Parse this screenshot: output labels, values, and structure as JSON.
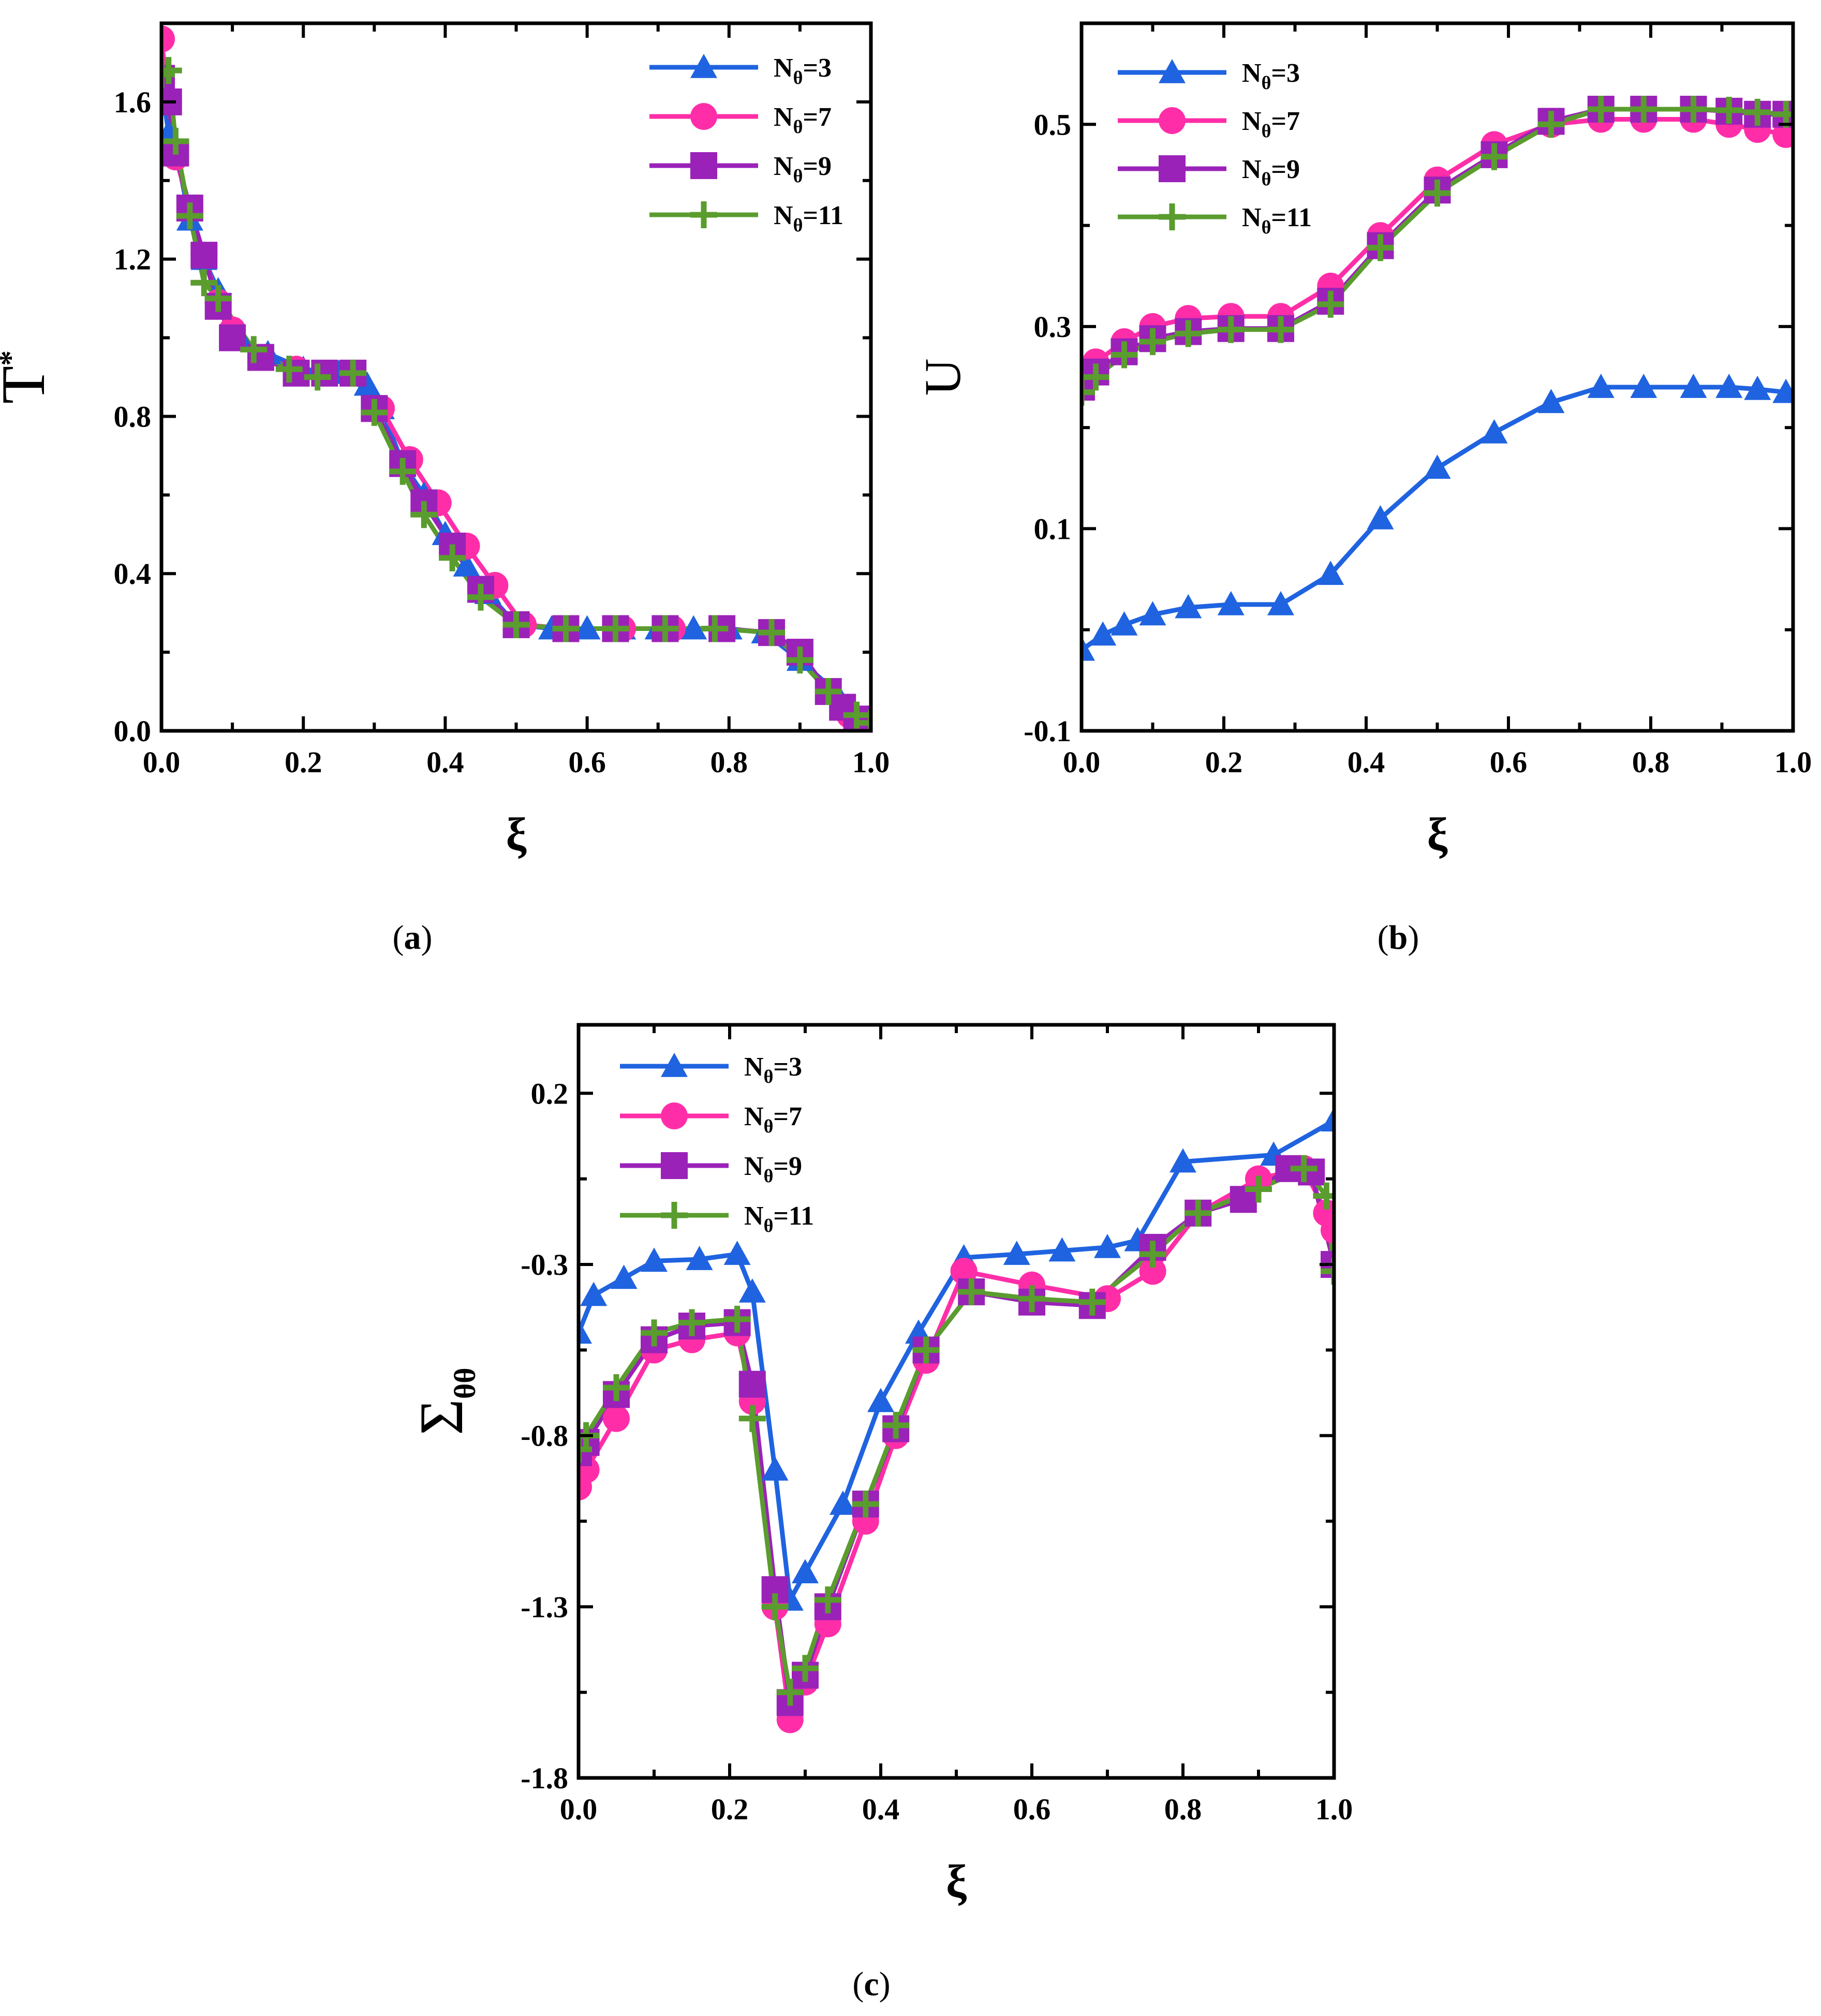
{
  "legend": [
    "Nθ=3",
    "Nθ=7",
    "Nθ=9",
    "Nθ=11"
  ],
  "colors": {
    "n3": "#1f63e0",
    "n7": "#ff2ea8",
    "n9": "#9a22b8",
    "n11": "#5a9c2e",
    "axis": "#000000"
  },
  "chart_data": [
    {
      "id": "a",
      "panel_label": "a",
      "type": "line",
      "xlabel": "ξ",
      "ylabel": "T",
      "ylabel_sup": "*",
      "xlim": [
        0,
        1
      ],
      "ylim": [
        0,
        1.8
      ],
      "xticks": [
        "0.0",
        "0.2",
        "0.4",
        "0.6",
        "0.8",
        "1.0"
      ],
      "xtick_values": [
        0,
        0.2,
        0.4,
        0.6,
        0.8,
        1.0
      ],
      "yticks": [
        "0.0",
        "0.4",
        "0.8",
        "1.2",
        "1.6"
      ],
      "ytick_values": [
        0,
        0.4,
        0.8,
        1.2,
        1.6
      ],
      "legend_position": "top-right",
      "series": [
        {
          "name": "Nθ=3",
          "key": "n3",
          "marker": "triangle",
          "x": [
            0,
            0.01,
            0.02,
            0.04,
            0.06,
            0.08,
            0.11,
            0.15,
            0.2,
            0.25,
            0.27,
            0.29,
            0.31,
            0.34,
            0.37,
            0.4,
            0.43,
            0.46,
            0.5,
            0.55,
            0.6,
            0.65,
            0.7,
            0.75,
            0.8,
            0.85,
            0.9,
            0.95,
            0.98,
            1.0
          ],
          "y": [
            1.65,
            1.52,
            1.48,
            1.3,
            1.2,
            1.12,
            1.0,
            0.96,
            0.92,
            0.91,
            0.91,
            0.88,
            0.82,
            0.68,
            0.6,
            0.5,
            0.42,
            0.35,
            0.27,
            0.26,
            0.26,
            0.26,
            0.26,
            0.26,
            0.26,
            0.25,
            0.18,
            0.1,
            0.04,
            0.02
          ]
        },
        {
          "name": "Nθ=7",
          "key": "n7",
          "marker": "circle",
          "x": [
            0,
            0.01,
            0.02,
            0.04,
            0.06,
            0.08,
            0.1,
            0.14,
            0.19,
            0.23,
            0.27,
            0.31,
            0.35,
            0.39,
            0.43,
            0.47,
            0.51,
            0.57,
            0.65,
            0.72,
            0.79,
            0.86,
            0.9,
            0.94,
            0.97,
            1.0
          ],
          "y": [
            1.76,
            1.6,
            1.46,
            1.33,
            1.21,
            1.09,
            1.02,
            0.95,
            0.92,
            0.91,
            0.91,
            0.82,
            0.69,
            0.58,
            0.47,
            0.37,
            0.27,
            0.26,
            0.26,
            0.26,
            0.26,
            0.25,
            0.2,
            0.1,
            0.04,
            0.02
          ]
        },
        {
          "name": "Nθ=9",
          "key": "n9",
          "marker": "square",
          "x": [
            0,
            0.01,
            0.02,
            0.04,
            0.06,
            0.08,
            0.1,
            0.14,
            0.19,
            0.23,
            0.27,
            0.3,
            0.34,
            0.37,
            0.41,
            0.45,
            0.5,
            0.57,
            0.64,
            0.71,
            0.79,
            0.86,
            0.9,
            0.94,
            0.96,
            0.98,
            1.0
          ],
          "y": [
            1.66,
            1.6,
            1.47,
            1.33,
            1.21,
            1.08,
            1.0,
            0.95,
            0.91,
            0.91,
            0.91,
            0.82,
            0.68,
            0.58,
            0.47,
            0.36,
            0.27,
            0.26,
            0.26,
            0.26,
            0.26,
            0.25,
            0.2,
            0.1,
            0.06,
            0.03,
            0.02
          ]
        },
        {
          "name": "Nθ=11",
          "key": "n11",
          "marker": "plus",
          "x": [
            0,
            0.01,
            0.02,
            0.04,
            0.06,
            0.08,
            0.13,
            0.18,
            0.22,
            0.27,
            0.3,
            0.34,
            0.37,
            0.41,
            0.45,
            0.5,
            0.57,
            0.64,
            0.71,
            0.78,
            0.86,
            0.9,
            0.94,
            0.98,
            1.0
          ],
          "y": [
            1.67,
            1.68,
            1.5,
            1.31,
            1.14,
            1.1,
            0.97,
            0.92,
            0.9,
            0.91,
            0.81,
            0.66,
            0.55,
            0.44,
            0.34,
            0.27,
            0.26,
            0.26,
            0.26,
            0.26,
            0.25,
            0.18,
            0.1,
            0.04,
            0.02
          ]
        }
      ]
    },
    {
      "id": "b",
      "panel_label": "b",
      "type": "line",
      "xlabel": "ξ",
      "ylabel": "U",
      "ylabel_sup": "",
      "xlim": [
        0,
        1
      ],
      "ylim": [
        -0.1,
        0.6
      ],
      "xticks": [
        "0.0",
        "0.2",
        "0.4",
        "0.6",
        "0.8",
        "1.0"
      ],
      "xtick_values": [
        0,
        0.2,
        0.4,
        0.6,
        0.8,
        1.0
      ],
      "yticks": [
        "-0.1",
        "0.1",
        "0.3",
        "0.5"
      ],
      "ytick_values": [
        -0.1,
        0.1,
        0.3,
        0.5
      ],
      "legend_position": "top-left",
      "series": [
        {
          "name": "Nθ=3",
          "key": "n3",
          "marker": "triangle",
          "x": [
            0,
            0.03,
            0.06,
            0.1,
            0.15,
            0.21,
            0.28,
            0.35,
            0.42,
            0.5,
            0.58,
            0.66,
            0.73,
            0.79,
            0.86,
            0.91,
            0.95,
            0.99
          ],
          "y": [
            -0.02,
            -0.005,
            0.005,
            0.015,
            0.022,
            0.025,
            0.025,
            0.055,
            0.11,
            0.16,
            0.195,
            0.225,
            0.24,
            0.24,
            0.24,
            0.24,
            0.238,
            0.235
          ]
        },
        {
          "name": "Nθ=7",
          "key": "n7",
          "marker": "circle",
          "x": [
            0,
            0.02,
            0.06,
            0.1,
            0.15,
            0.21,
            0.28,
            0.35,
            0.42,
            0.5,
            0.58,
            0.66,
            0.73,
            0.79,
            0.86,
            0.91,
            0.95,
            0.99
          ],
          "y": [
            0.25,
            0.265,
            0.285,
            0.3,
            0.308,
            0.31,
            0.31,
            0.34,
            0.39,
            0.445,
            0.48,
            0.5,
            0.505,
            0.505,
            0.505,
            0.5,
            0.495,
            0.49
          ]
        },
        {
          "name": "Nθ=9",
          "key": "n9",
          "marker": "square",
          "x": [
            0,
            0.02,
            0.06,
            0.1,
            0.15,
            0.21,
            0.28,
            0.35,
            0.42,
            0.5,
            0.58,
            0.66,
            0.73,
            0.79,
            0.86,
            0.91,
            0.95,
            0.99
          ],
          "y": [
            0.24,
            0.255,
            0.275,
            0.288,
            0.295,
            0.298,
            0.298,
            0.325,
            0.38,
            0.435,
            0.47,
            0.503,
            0.515,
            0.515,
            0.515,
            0.513,
            0.51,
            0.51
          ]
        },
        {
          "name": "Nθ=11",
          "key": "n11",
          "marker": "plus",
          "x": [
            0,
            0.02,
            0.06,
            0.1,
            0.15,
            0.21,
            0.28,
            0.35,
            0.42,
            0.5,
            0.58,
            0.66,
            0.73,
            0.79,
            0.86,
            0.91,
            0.95,
            0.99
          ],
          "y": [
            0.235,
            0.25,
            0.272,
            0.285,
            0.293,
            0.297,
            0.297,
            0.322,
            0.378,
            0.432,
            0.468,
            0.5,
            0.515,
            0.515,
            0.515,
            0.514,
            0.512,
            0.51
          ]
        }
      ]
    },
    {
      "id": "c",
      "panel_label": "c",
      "type": "line",
      "xlabel": "ξ",
      "ylabel": "Σ",
      "ylabel_sub": "θθ",
      "xlim": [
        0,
        1
      ],
      "ylim": [
        -1.8,
        0.4
      ],
      "xticks": [
        "0.0",
        "0.2",
        "0.4",
        "0.6",
        "0.8",
        "1.0"
      ],
      "xtick_values": [
        0,
        0.2,
        0.4,
        0.6,
        0.8,
        1.0
      ],
      "yticks": [
        "-1.8",
        "-1.3",
        "-0.8",
        "-0.3",
        "0.2"
      ],
      "ytick_values": [
        -1.8,
        -1.3,
        -0.8,
        -0.3,
        0.2
      ],
      "legend_position": "top-left",
      "series": [
        {
          "name": "Nθ=3",
          "key": "n3",
          "marker": "triangle",
          "x": [
            0,
            0.02,
            0.06,
            0.1,
            0.16,
            0.21,
            0.23,
            0.26,
            0.28,
            0.3,
            0.35,
            0.4,
            0.45,
            0.51,
            0.58,
            0.64,
            0.7,
            0.74,
            0.8,
            0.92,
            1.0
          ],
          "y": [
            -0.5,
            -0.39,
            -0.34,
            -0.29,
            -0.285,
            -0.27,
            -0.38,
            -0.9,
            -1.28,
            -1.2,
            -1.0,
            -0.7,
            -0.5,
            -0.28,
            -0.27,
            -0.26,
            -0.25,
            -0.23,
            0.0,
            0.02,
            0.12
          ]
        },
        {
          "name": "Nθ=7",
          "key": "n7",
          "marker": "circle",
          "x": [
            0,
            0.01,
            0.05,
            0.1,
            0.15,
            0.21,
            0.23,
            0.26,
            0.28,
            0.3,
            0.33,
            0.38,
            0.42,
            0.46,
            0.51,
            0.6,
            0.7,
            0.76,
            0.82,
            0.9,
            0.96,
            0.99,
            1.0
          ],
          "y": [
            -0.95,
            -0.9,
            -0.75,
            -0.55,
            -0.52,
            -0.5,
            -0.7,
            -1.3,
            -1.63,
            -1.52,
            -1.35,
            -1.05,
            -0.8,
            -0.58,
            -0.32,
            -0.36,
            -0.4,
            -0.32,
            -0.15,
            -0.05,
            -0.02,
            -0.15,
            -0.2
          ]
        },
        {
          "name": "Nθ=9",
          "key": "n9",
          "marker": "square",
          "x": [
            0,
            0.01,
            0.05,
            0.1,
            0.15,
            0.21,
            0.23,
            0.26,
            0.28,
            0.3,
            0.33,
            0.38,
            0.42,
            0.46,
            0.52,
            0.6,
            0.68,
            0.76,
            0.82,
            0.88,
            0.94,
            0.97,
            1.0
          ],
          "y": [
            -0.85,
            -0.82,
            -0.68,
            -0.52,
            -0.48,
            -0.47,
            -0.65,
            -1.25,
            -1.58,
            -1.5,
            -1.3,
            -1.0,
            -0.78,
            -0.55,
            -0.38,
            -0.41,
            -0.42,
            -0.25,
            -0.15,
            -0.11,
            -0.02,
            -0.03,
            -0.3
          ]
        },
        {
          "name": "Nθ=11",
          "key": "n11",
          "marker": "plus",
          "x": [
            0,
            0.01,
            0.05,
            0.1,
            0.15,
            0.21,
            0.23,
            0.26,
            0.28,
            0.3,
            0.33,
            0.38,
            0.42,
            0.46,
            0.52,
            0.6,
            0.68,
            0.76,
            0.82,
            0.9,
            0.96,
            0.99,
            1.0
          ],
          "y": [
            -0.84,
            -0.8,
            -0.66,
            -0.5,
            -0.47,
            -0.46,
            -0.75,
            -1.3,
            -1.55,
            -1.48,
            -1.28,
            -1.0,
            -0.77,
            -0.55,
            -0.38,
            -0.4,
            -0.41,
            -0.27,
            -0.15,
            -0.08,
            -0.02,
            -0.1,
            -0.32
          ]
        }
      ]
    }
  ]
}
